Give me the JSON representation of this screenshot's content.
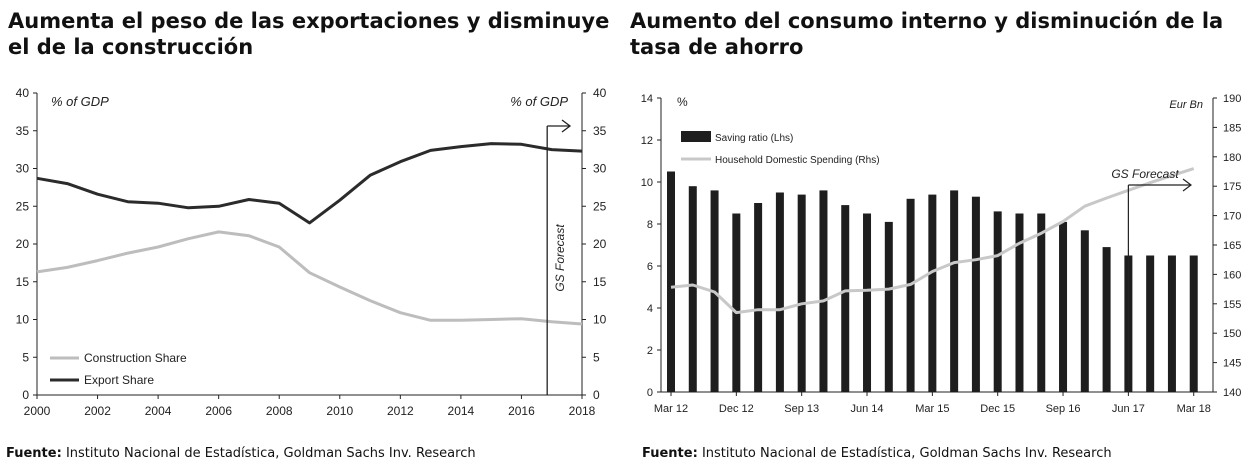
{
  "left": {
    "title": "Aumenta el peso de las exportaciones y disminuye el de la construcción",
    "source_label": "Fuente:",
    "source_text": "Instituto Nacional de Estadística, Goldman Sachs Inv. Research"
  },
  "right": {
    "title": "Aumento del consumo interno y disminución de la tasa de ahorro",
    "source_label": "Fuente:",
    "source_text": "Instituto Nacional de Estadística, Goldman Sachs Inv. Research"
  },
  "chart_data": [
    {
      "type": "line",
      "title": "Aumenta el peso de las exportaciones y disminuye el de la construcción",
      "ylabel_left": "% of GDP",
      "ylabel_right": "% of GDP",
      "ylim": [
        0,
        40
      ],
      "yticks": [
        "0",
        "5",
        "10",
        "15",
        "20",
        "25",
        "30",
        "35",
        "40"
      ],
      "xlim": [
        2000,
        2018
      ],
      "xticks": [
        "2000",
        "2002",
        "2004",
        "2006",
        "2008",
        "2010",
        "2012",
        "2014",
        "2016",
        "2018"
      ],
      "forecast_label": "GS Forecast",
      "forecast_x": 2016.85,
      "x": [
        2000,
        2001,
        2002,
        2003,
        2004,
        2005,
        2006,
        2007,
        2008,
        2009,
        2010,
        2011,
        2012,
        2013,
        2014,
        2015,
        2016,
        2017,
        2018
      ],
      "series": [
        {
          "name": "Construction Share",
          "color": "#bdbdbd",
          "values": [
            16.3,
            16.9,
            17.8,
            18.8,
            19.6,
            20.7,
            21.6,
            21.1,
            19.6,
            16.2,
            14.3,
            12.5,
            10.9,
            9.9,
            9.9,
            10.0,
            10.1,
            9.7,
            9.4
          ]
        },
        {
          "name": "Export Share",
          "color": "#2b2b2b",
          "values": [
            28.7,
            28.0,
            26.6,
            25.6,
            25.4,
            24.8,
            25.0,
            25.9,
            25.4,
            22.8,
            25.8,
            29.1,
            30.9,
            32.4,
            32.9,
            33.3,
            33.2,
            32.5,
            32.3
          ]
        }
      ]
    },
    {
      "type": "bar",
      "title": "Aumento del consumo interno y disminución de la tasa de ahorro",
      "ylabel_left": "%",
      "ylabel_right": "Eur Bn",
      "ylim_left": [
        0,
        14
      ],
      "yticks_left": [
        "0",
        "2",
        "4",
        "6",
        "8",
        "10",
        "12",
        "14"
      ],
      "ylim_right": [
        140,
        190
      ],
      "yticks_right": [
        "140",
        "145",
        "150",
        "155",
        "160",
        "165",
        "170",
        "175",
        "180",
        "185",
        "190"
      ],
      "xticks": [
        "Mar 12",
        "Dec 12",
        "Sep 13",
        "Jun 14",
        "Mar 15",
        "Dec 15",
        "Sep 16",
        "Jun 17",
        "Mar 18"
      ],
      "forecast_label": "GS Forecast",
      "forecast_index": 21,
      "series": [
        {
          "name": "Saving ratio (Lhs)",
          "color": "#1e1e1e",
          "kind": "bar",
          "values": [
            10.5,
            9.8,
            9.6,
            8.5,
            9.0,
            9.5,
            9.4,
            9.6,
            8.9,
            8.5,
            8.1,
            9.2,
            9.4,
            9.6,
            9.3,
            8.6,
            8.5,
            8.5,
            8.1,
            7.7,
            6.9,
            6.5,
            6.5,
            6.5,
            6.5
          ]
        },
        {
          "name": "Household Domestic Spending (Rhs)",
          "color": "#c8c8c8",
          "kind": "line",
          "values": [
            157.8,
            158.2,
            157.0,
            153.5,
            154.0,
            154.0,
            155.0,
            155.5,
            157.2,
            157.3,
            157.5,
            158.3,
            160.5,
            162.0,
            162.5,
            163.2,
            165.3,
            167.0,
            169.0,
            171.6,
            173.0,
            174.3,
            175.6,
            176.8,
            178.0
          ]
        }
      ]
    }
  ]
}
